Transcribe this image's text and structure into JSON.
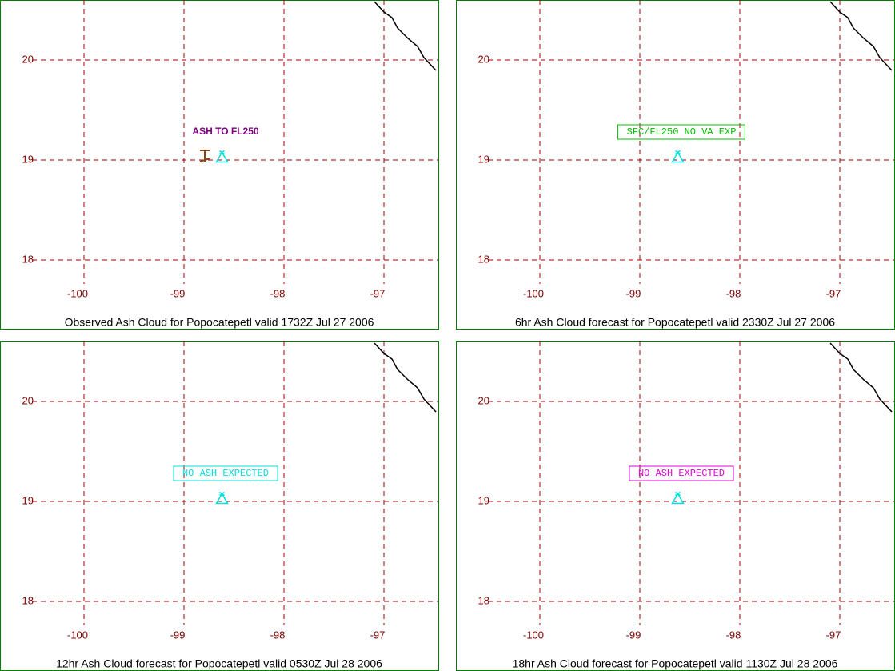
{
  "grid": {
    "lon_ticks": [
      -100,
      -99,
      -98,
      -97
    ],
    "lat_ticks": [
      20,
      19,
      18
    ]
  },
  "volcano": {
    "lon": -98.62,
    "lat": 19.02
  },
  "panels": [
    {
      "title": "Observed Ash Cloud for Popocatepetl valid 1732Z Jul 27 2006",
      "annotation": "ASH TO FL250",
      "color": "#800080",
      "boxed": false
    },
    {
      "title": "6hr Ash Cloud forecast for Popocatepetl valid 2330Z Jul 27 2006",
      "annotation": "SFC/FL250 NO VA EXP",
      "color": "#00c000",
      "boxed": true
    },
    {
      "title": "12hr Ash Cloud forecast for Popocatepetl valid 0530Z Jul 28 2006",
      "annotation": "NO ASH EXPECTED",
      "color": "#00e0e0",
      "boxed": true
    },
    {
      "title": "18hr Ash Cloud forecast for Popocatepetl valid 1130Z Jul 28 2006",
      "annotation": "NO ASH EXPECTED",
      "color": "#e000e0",
      "boxed": true
    }
  ]
}
